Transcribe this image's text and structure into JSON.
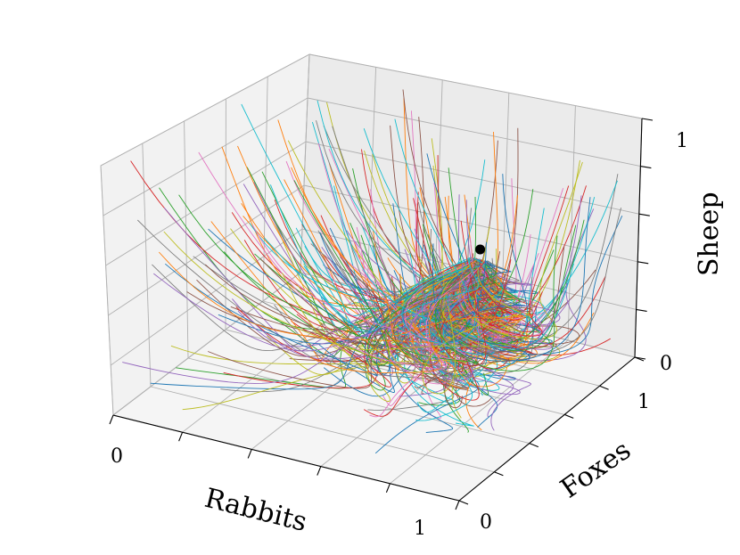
{
  "chart_data": {
    "type": "line",
    "subtype": "3d-trajectories",
    "title": "",
    "xlabel": "Rabbits",
    "ylabel": "Foxes",
    "zlabel": "Sheep",
    "xlim": [
      0,
      1
    ],
    "ylim": [
      0,
      1
    ],
    "zlim": [
      0,
      1
    ],
    "x_ticks": [
      "0",
      "1"
    ],
    "y_ticks": [
      "0",
      "1"
    ],
    "z_ticks": [
      "0",
      "1"
    ],
    "grid": true,
    "trajectory_count": 300,
    "equilibrium_point": {
      "x": 0.75,
      "y": 0.6,
      "z": 0.6
    },
    "colors": [
      "#1f77b4",
      "#ff7f0e",
      "#2ca02c",
      "#d62728",
      "#9467bd",
      "#8c564b",
      "#e377c2",
      "#7f7f7f",
      "#bcbd22",
      "#17becf"
    ]
  }
}
